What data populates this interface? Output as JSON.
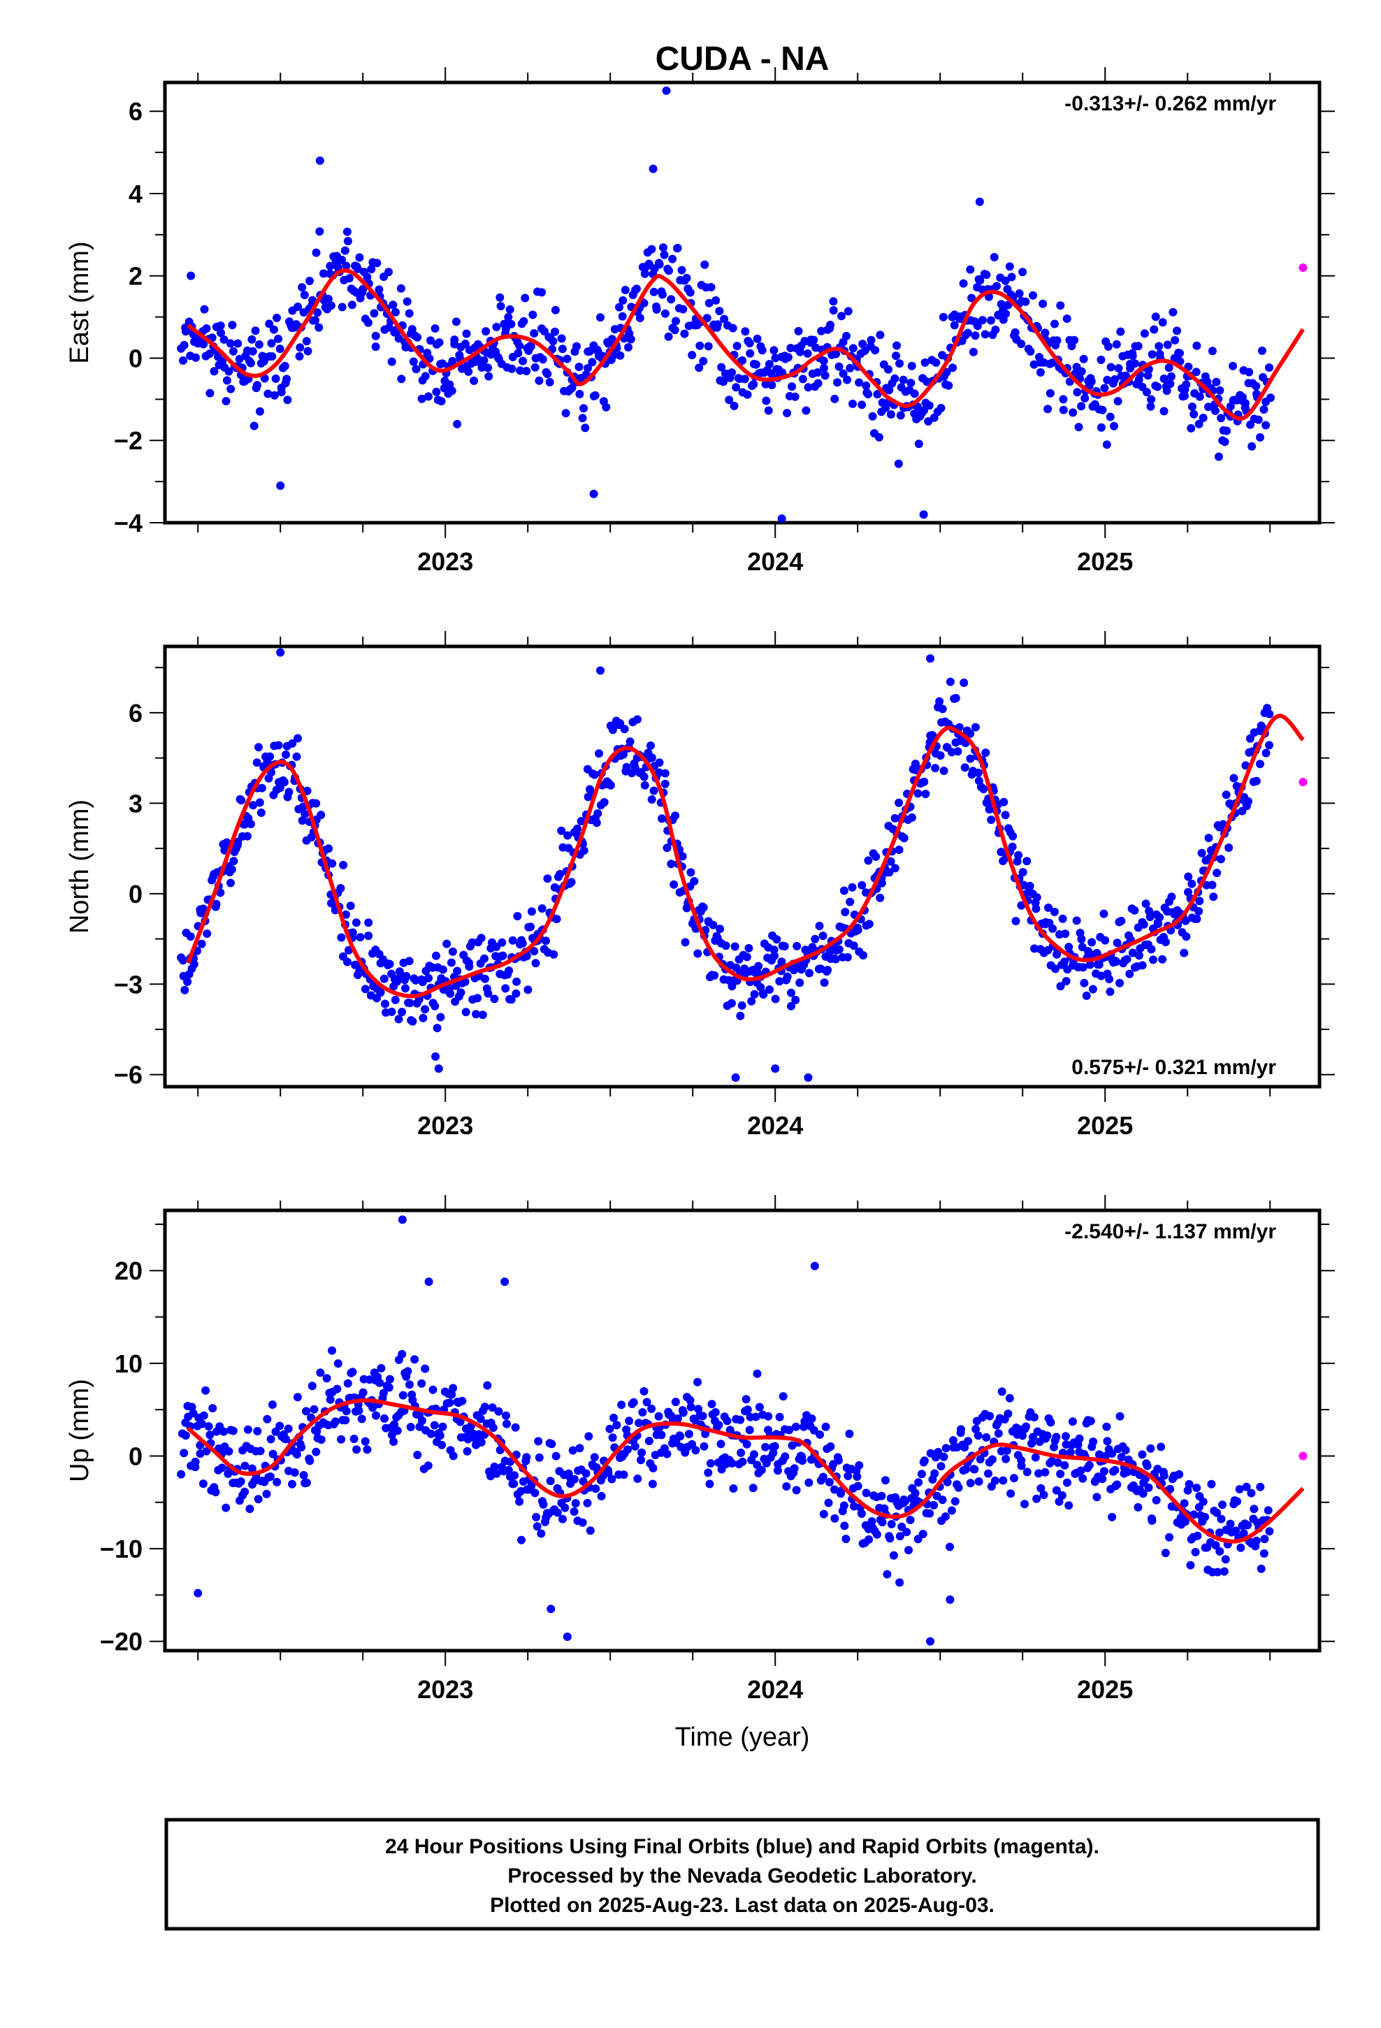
{
  "page": {
    "title": "CUDA - NA"
  },
  "caption": {
    "lines": [
      "24 Hour Positions Using Final Orbits (blue) and Rapid Orbits (magenta).",
      "Processed by the Nevada Geodetic Laboratory.",
      "Plotted on 2025-Aug-23. Last data on 2025-Aug-03."
    ]
  },
  "colors": {
    "final": "#0000ff",
    "rapid": "#ff00ff",
    "fit": "#ff0000"
  },
  "chart_data": [
    {
      "type": "scatter",
      "ylabel": "East (mm)",
      "xlabel": "",
      "xlim": [
        2022.15,
        2025.65
      ],
      "ylim": [
        -4,
        6.7
      ],
      "yticks": [
        -4,
        -2,
        0,
        2,
        4,
        6
      ],
      "xticks": [
        2023,
        2024,
        2025
      ],
      "rate_label": "-0.313+/- 0.262 mm/yr",
      "rate_position": "top-right",
      "fit": {
        "x": [
          2022.22,
          2022.3,
          2022.4,
          2022.48,
          2022.57,
          2022.68,
          2022.78,
          2022.9,
          2022.98,
          2023.07,
          2023.17,
          2023.27,
          2023.37,
          2023.42,
          2023.52,
          2023.62,
          2023.67,
          2023.77,
          2023.87,
          2023.95,
          2024.05,
          2024.12,
          2024.2,
          2024.3,
          2024.35,
          2024.42,
          2024.52,
          2024.6,
          2024.67,
          2024.75,
          2024.85,
          2024.95,
          2025.03,
          2025.12,
          2025.2,
          2025.3,
          2025.37,
          2025.43,
          2025.52,
          2025.6
        ],
        "y": [
          0.8,
          0.3,
          -0.4,
          -0.2,
          0.8,
          2.1,
          1.6,
          0.3,
          -0.3,
          0.0,
          0.5,
          0.4,
          -0.3,
          -0.6,
          0.4,
          1.8,
          1.9,
          1.0,
          0.0,
          -0.5,
          -0.4,
          0.0,
          0.2,
          -0.6,
          -1.0,
          -1.1,
          -0.1,
          1.3,
          1.6,
          1.1,
          0.0,
          -0.8,
          -0.8,
          -0.2,
          -0.1,
          -0.7,
          -1.3,
          -1.4,
          -0.3,
          0.7
        ]
      },
      "rapid": [
        [
          2025.6,
          2.2
        ]
      ],
      "final_model": {
        "start": 2022.2,
        "end": 2025.5,
        "count": 900,
        "scatter": 0.8,
        "seed": 11
      },
      "outliers": [
        [
          2023.67,
          6.5
        ],
        [
          2023.63,
          4.6
        ],
        [
          2022.62,
          4.8
        ],
        [
          2024.62,
          3.8
        ],
        [
          2024.02,
          -3.9
        ],
        [
          2024.45,
          -3.8
        ],
        [
          2022.5,
          -3.1
        ],
        [
          2023.45,
          -3.3
        ]
      ]
    },
    {
      "type": "scatter",
      "ylabel": "North (mm)",
      "xlabel": "",
      "xlim": [
        2022.15,
        2025.65
      ],
      "ylim": [
        -6.4,
        8.2
      ],
      "yticks": [
        -6,
        -3,
        0,
        3,
        6
      ],
      "xticks": [
        2023,
        2024,
        2025
      ],
      "rate_label": "0.575+/- 0.321 mm/yr",
      "rate_position": "bottom-right",
      "fit": {
        "x": [
          2022.22,
          2022.3,
          2022.38,
          2022.45,
          2022.52,
          2022.58,
          2022.65,
          2022.72,
          2022.8,
          2022.9,
          2023.0,
          2023.1,
          2023.2,
          2023.3,
          2023.4,
          2023.47,
          2023.52,
          2023.58,
          2023.65,
          2023.72,
          2023.8,
          2023.88,
          2023.95,
          2024.05,
          2024.15,
          2024.25,
          2024.35,
          2024.43,
          2024.5,
          2024.55,
          2024.62,
          2024.7,
          2024.78,
          2024.87,
          2024.95,
          2025.05,
          2025.15,
          2025.23,
          2025.3,
          2025.38,
          2025.47,
          2025.53,
          2025.6
        ],
        "y": [
          -2.3,
          0.0,
          2.5,
          4.0,
          4.3,
          3.0,
          0.5,
          -1.8,
          -3.0,
          -3.4,
          -3.0,
          -2.6,
          -2.2,
          -1.2,
          1.5,
          3.8,
          4.7,
          4.7,
          3.5,
          0.5,
          -1.8,
          -2.7,
          -2.8,
          -2.3,
          -1.8,
          -0.8,
          1.5,
          3.8,
          5.3,
          5.4,
          4.5,
          1.5,
          -0.8,
          -1.9,
          -2.2,
          -1.8,
          -1.3,
          -0.8,
          0.5,
          2.5,
          5.0,
          5.9,
          5.1
        ]
      },
      "rapid": [
        [
          2025.6,
          3.7
        ]
      ],
      "final_model": {
        "start": 2022.2,
        "end": 2025.5,
        "count": 900,
        "scatter": 0.9,
        "seed": 23
      },
      "outliers": [
        [
          2022.5,
          8.0
        ],
        [
          2023.47,
          7.4
        ],
        [
          2024.47,
          7.8
        ],
        [
          2022.98,
          -5.8
        ],
        [
          2023.88,
          -6.1
        ],
        [
          2024.1,
          -6.1
        ],
        [
          2022.97,
          -5.4
        ],
        [
          2024.0,
          -5.8
        ]
      ]
    },
    {
      "type": "scatter",
      "ylabel": "Up (mm)",
      "xlabel": "Time (year)",
      "xlim": [
        2022.15,
        2025.65
      ],
      "ylim": [
        -21,
        26.5
      ],
      "yticks": [
        -20,
        -10,
        0,
        10,
        20
      ],
      "xticks": [
        2023,
        2024,
        2025
      ],
      "rate_label": "-2.540+/- 1.137 mm/yr",
      "rate_position": "top-right",
      "fit": {
        "x": [
          2022.22,
          2022.3,
          2022.38,
          2022.47,
          2022.55,
          2022.65,
          2022.75,
          2022.85,
          2022.95,
          2023.05,
          2023.15,
          2023.25,
          2023.32,
          2023.38,
          2023.45,
          2023.52,
          2023.6,
          2023.7,
          2023.8,
          2023.9,
          2024.0,
          2024.08,
          2024.15,
          2024.22,
          2024.3,
          2024.38,
          2024.45,
          2024.52,
          2024.6,
          2024.67,
          2024.75,
          2024.85,
          2024.95,
          2025.05,
          2025.13,
          2025.2,
          2025.28,
          2025.35,
          2025.42,
          2025.5,
          2025.6
        ],
        "y": [
          3.0,
          0.5,
          -1.8,
          -1.2,
          2.0,
          5.0,
          6.0,
          5.5,
          4.8,
          4.2,
          2.0,
          -2.0,
          -4.0,
          -4.2,
          -2.5,
          0.5,
          3.0,
          3.5,
          2.8,
          2.0,
          2.0,
          1.5,
          -1.0,
          -3.8,
          -6.0,
          -6.5,
          -5.0,
          -2.0,
          0.0,
          1.2,
          0.8,
          0.0,
          -0.3,
          -0.8,
          -2.0,
          -4.5,
          -7.5,
          -9.0,
          -9.0,
          -7.0,
          -3.5
        ]
      },
      "rapid": [
        [
          2025.6,
          0.0
        ]
      ],
      "final_model": {
        "start": 2022.2,
        "end": 2025.5,
        "count": 900,
        "scatter": 3.6,
        "seed": 37
      },
      "outliers": [
        [
          2022.87,
          25.5
        ],
        [
          2024.12,
          20.5
        ],
        [
          2022.95,
          18.8
        ],
        [
          2023.18,
          18.8
        ],
        [
          2023.37,
          -19.5
        ],
        [
          2024.47,
          -20.0
        ],
        [
          2023.32,
          -16.5
        ],
        [
          2022.25,
          -14.8
        ],
        [
          2024.53,
          -15.5
        ]
      ]
    }
  ]
}
